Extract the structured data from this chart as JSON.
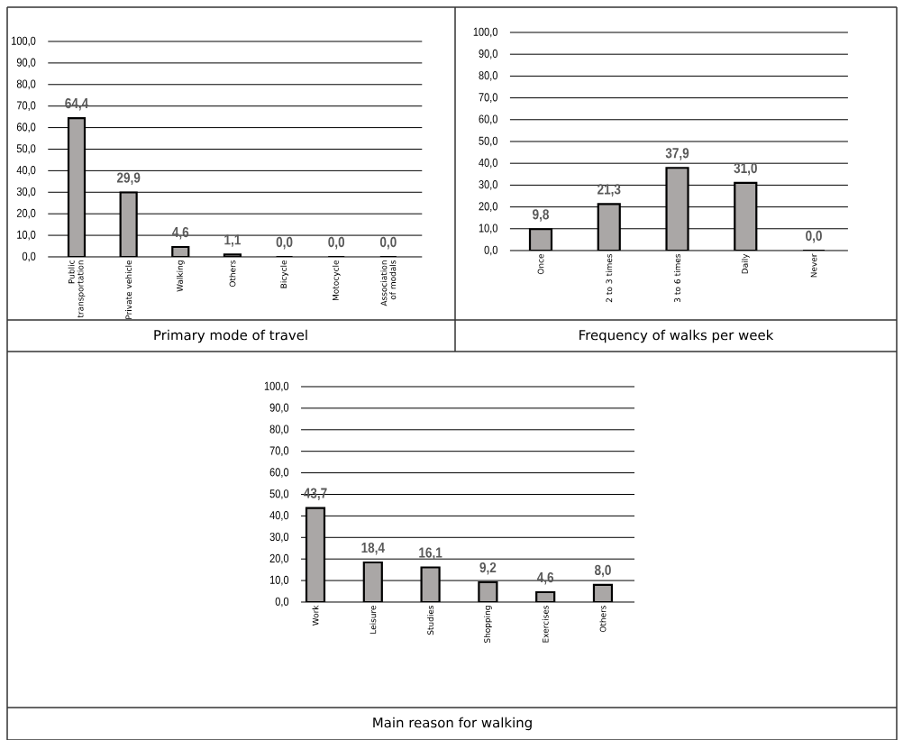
{
  "chart_data": [
    {
      "type": "bar",
      "title": "Primary mode of travel",
      "categories": [
        "Public transportation",
        "Private vehicle",
        "Walking",
        "Others",
        "Bicycle",
        "Motocycle",
        "Association of modals"
      ],
      "values": [
        64.4,
        29.9,
        4.6,
        1.1,
        0.0,
        0.0,
        0.0
      ],
      "value_labels": [
        "64,4",
        "29,9",
        "4,6",
        "1,1",
        "0,0",
        "0,0",
        "0,0"
      ],
      "color": "#aaa7a6",
      "ylim": [
        0,
        100
      ],
      "yticks": [
        {
          "value": 0,
          "label": "0,0"
        },
        {
          "value": 10,
          "label": "10,0"
        },
        {
          "value": 20,
          "label": "20,0"
        },
        {
          "value": 30,
          "label": "30,0"
        },
        {
          "value": 40,
          "label": "40,0"
        },
        {
          "value": 50,
          "label": "50,0"
        },
        {
          "value": 60,
          "label": "60,0"
        },
        {
          "value": 70,
          "label": "70,0"
        },
        {
          "value": 80,
          "label": "80,0"
        },
        {
          "value": 90,
          "label": "90,0"
        },
        {
          "value": 100,
          "label": "100,0"
        }
      ],
      "grid": "y"
    },
    {
      "type": "bar",
      "title": "Frequency of walks per week",
      "categories": [
        "Once",
        "2 to 3 times",
        "3 to 6 times",
        "Daily",
        "Never"
      ],
      "values": [
        9.8,
        21.3,
        37.9,
        31.0,
        0.0
      ],
      "value_labels": [
        "9,8",
        "21,3",
        "37,9",
        "31,0",
        "0,0"
      ],
      "color": "#aaa7a6",
      "ylim": [
        0,
        100
      ],
      "yticks": [
        {
          "value": 0,
          "label": "0,0"
        },
        {
          "value": 10,
          "label": "10,0"
        },
        {
          "value": 20,
          "label": "20,0"
        },
        {
          "value": 30,
          "label": "30,0"
        },
        {
          "value": 40,
          "label": "40,0"
        },
        {
          "value": 50,
          "label": "50,0"
        },
        {
          "value": 60,
          "label": "60,0"
        },
        {
          "value": 70,
          "label": "70,0"
        },
        {
          "value": 80,
          "label": "80,0"
        },
        {
          "value": 90,
          "label": "90,0"
        },
        {
          "value": 100,
          "label": "100,0"
        }
      ],
      "grid": "y"
    },
    {
      "type": "bar",
      "title": "Main reason for walking",
      "categories": [
        "Work",
        "Leisure",
        "Studies",
        "Shopping",
        "Exercises",
        "Others"
      ],
      "values": [
        43.7,
        18.4,
        16.1,
        9.2,
        4.6,
        8.0
      ],
      "value_labels": [
        "43,7",
        "18,4",
        "16,1",
        "9,2",
        "4,6",
        "8,0"
      ],
      "color": "#aaa7a6",
      "ylim": [
        0,
        100
      ],
      "yticks": [
        {
          "value": 0,
          "label": "0,0"
        },
        {
          "value": 10,
          "label": "10,0"
        },
        {
          "value": 20,
          "label": "20,0"
        },
        {
          "value": 30,
          "label": "30,0"
        },
        {
          "value": 40,
          "label": "40,0"
        },
        {
          "value": 50,
          "label": "50,0"
        },
        {
          "value": 60,
          "label": "60,0"
        },
        {
          "value": 70,
          "label": "70,0"
        },
        {
          "value": 80,
          "label": "80,0"
        },
        {
          "value": 90,
          "label": "90,0"
        },
        {
          "value": 100,
          "label": "100,0"
        }
      ],
      "grid": "y"
    }
  ]
}
